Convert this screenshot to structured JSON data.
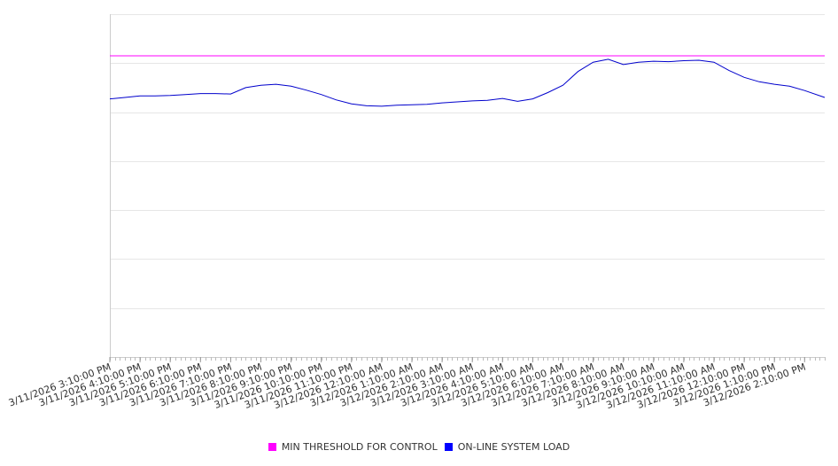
{
  "chart_data": {
    "type": "line",
    "title": "",
    "xlabel": "",
    "ylabel": "",
    "grid": true,
    "legend_position": "bottom",
    "x_ticks": [
      "3/11/2026 3:10:00 PM",
      "3/11/2026 4:10:00 PM",
      "3/11/2026 5:10:00 PM",
      "3/11/2026 6:10:00 PM",
      "3/11/2026 7:10:00 PM",
      "3/11/2026 8:10:00 PM",
      "3/11/2026 9:10:00 PM",
      "3/11/2026 10:10:00 PM",
      "3/11/2026 11:10:00 PM",
      "3/12/2026 12:10:00 AM",
      "3/12/2026 1:10:00 AM",
      "3/12/2026 2:10:00 AM",
      "3/12/2026 3:10:00 AM",
      "3/12/2026 4:10:00 AM",
      "3/12/2026 5:10:00 AM",
      "3/12/2026 6:10:00 AM",
      "3/12/2026 7:10:00 AM",
      "3/12/2026 8:10:00 AM",
      "3/12/2026 9:10:00 AM",
      "3/12/2026 10:10:00 AM",
      "3/12/2026 11:10:00 AM",
      "3/12/2026 12:10:00 PM",
      "3/12/2026 1:10:00 PM",
      "3/12/2026 2:10:00 PM"
    ],
    "x_range": [
      "3/11/2026 3:10:00 PM",
      "3/12/2026 2:50:00 PM"
    ],
    "y_range": [
      0,
      7
    ],
    "series": [
      {
        "name": "MIN THRESHOLD FOR CONTROL",
        "color": "#ff00ff",
        "x": [
          "3/11/2026 3:10:00 PM",
          "3/12/2026 2:50:00 PM"
        ],
        "y": [
          6.15,
          6.15
        ]
      },
      {
        "name": "ON-LINE SYSTEM LOAD",
        "color": "#0000cc",
        "x": [
          "3/11/2026 3:10:00 PM",
          "3/11/2026 3:40:00 PM",
          "3/11/2026 4:10:00 PM",
          "3/11/2026 4:40:00 PM",
          "3/11/2026 5:10:00 PM",
          "3/11/2026 5:40:00 PM",
          "3/11/2026 6:10:00 PM",
          "3/11/2026 6:40:00 PM",
          "3/11/2026 7:10:00 PM",
          "3/11/2026 7:40:00 PM",
          "3/11/2026 8:10:00 PM",
          "3/11/2026 8:40:00 PM",
          "3/11/2026 9:10:00 PM",
          "3/11/2026 9:40:00 PM",
          "3/11/2026 10:10:00 PM",
          "3/11/2026 10:40:00 PM",
          "3/11/2026 11:10:00 PM",
          "3/11/2026 11:40:00 PM",
          "3/12/2026 12:10:00 AM",
          "3/12/2026 12:40:00 AM",
          "3/12/2026 1:10:00 AM",
          "3/12/2026 1:40:00 AM",
          "3/12/2026 2:10:00 AM",
          "3/12/2026 2:40:00 AM",
          "3/12/2026 3:10:00 AM",
          "3/12/2026 3:40:00 AM",
          "3/12/2026 4:10:00 AM",
          "3/12/2026 4:40:00 AM",
          "3/12/2026 5:10:00 AM",
          "3/12/2026 5:40:00 AM",
          "3/12/2026 6:10:00 AM",
          "3/12/2026 6:40:00 AM",
          "3/12/2026 7:10:00 AM",
          "3/12/2026 7:40:00 AM",
          "3/12/2026 8:10:00 AM",
          "3/12/2026 8:40:00 AM",
          "3/12/2026 9:10:00 AM",
          "3/12/2026 9:40:00 AM",
          "3/12/2026 10:10:00 AM",
          "3/12/2026 10:40:00 AM",
          "3/12/2026 11:10:00 AM",
          "3/12/2026 11:40:00 AM",
          "3/12/2026 12:10:00 PM",
          "3/12/2026 12:40:00 PM",
          "3/12/2026 1:10:00 PM",
          "3/12/2026 1:40:00 PM",
          "3/12/2026 2:10:00 PM",
          "3/12/2026 2:50:00 PM"
        ],
        "y": [
          5.27,
          5.3,
          5.33,
          5.33,
          5.34,
          5.36,
          5.38,
          5.38,
          5.37,
          5.5,
          5.55,
          5.57,
          5.53,
          5.45,
          5.36,
          5.25,
          5.17,
          5.13,
          5.12,
          5.14,
          5.15,
          5.16,
          5.19,
          5.21,
          5.23,
          5.24,
          5.28,
          5.22,
          5.27,
          5.4,
          5.55,
          5.83,
          6.02,
          6.08,
          5.97,
          6.02,
          6.04,
          6.03,
          6.05,
          6.06,
          6.02,
          5.85,
          5.71,
          5.62,
          5.57,
          5.53,
          5.44,
          5.3
        ]
      }
    ]
  }
}
